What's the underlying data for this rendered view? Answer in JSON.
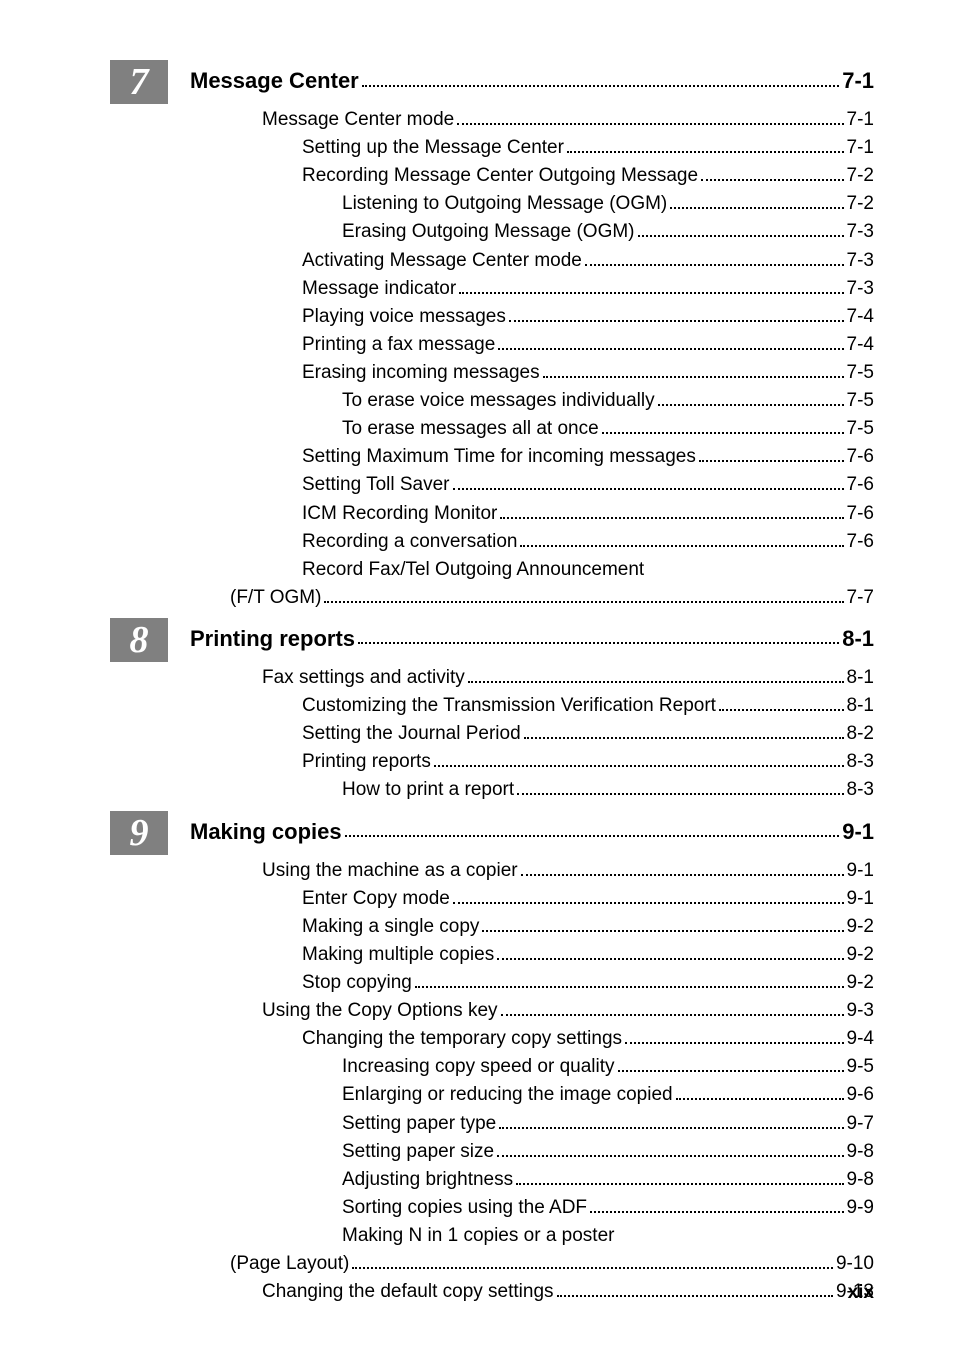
{
  "page_number": "xix",
  "colors": {
    "badge_bg": "#808080",
    "badge_fg": "#ffffff",
    "text": "#000000",
    "bg": "#ffffff"
  },
  "typography": {
    "chapter_title_fontsize": 22,
    "chapter_title_weight": "bold",
    "body_fontsize": 19,
    "badge_fontsize": 38,
    "badge_family": "Times New Roman"
  },
  "sections": [
    {
      "badge": "7",
      "title": "Message Center",
      "page": "7-1",
      "entries": [
        {
          "label": "Message Center mode",
          "page": "7-1",
          "indent": 1
        },
        {
          "label": "Setting up the Message Center",
          "page": "7-1",
          "indent": 2
        },
        {
          "label": "Recording Message Center Outgoing Message",
          "page": "7-2",
          "indent": 2
        },
        {
          "label": "Listening to Outgoing Message (OGM)",
          "page": "7-2",
          "indent": 3
        },
        {
          "label": "Erasing Outgoing Message (OGM)",
          "page": "7-3",
          "indent": 3
        },
        {
          "label": "Activating Message Center mode",
          "page": "7-3",
          "indent": 2
        },
        {
          "label": "Message indicator",
          "page": "7-3",
          "indent": 2
        },
        {
          "label": "Playing voice messages",
          "page": "7-4",
          "indent": 2
        },
        {
          "label": "Printing a fax message",
          "page": "7-4",
          "indent": 2
        },
        {
          "label": "Erasing incoming messages",
          "page": "7-5",
          "indent": 2
        },
        {
          "label": "To erase voice messages individually",
          "page": "7-5",
          "indent": 3
        },
        {
          "label": "To erase messages all at once",
          "page": "7-5",
          "indent": 3
        },
        {
          "label": "Setting Maximum Time for incoming messages",
          "page": "7-6",
          "indent": 2
        },
        {
          "label": "Setting Toll Saver",
          "page": "7-6",
          "indent": 2
        },
        {
          "label": "ICM Recording Monitor",
          "page": "7-6",
          "indent": 2
        },
        {
          "label": "Recording a conversation",
          "page": "7-6",
          "indent": 2
        },
        {
          "label": "Record Fax/Tel Outgoing Announcement",
          "page": "",
          "indent": 2,
          "nopage": true
        },
        {
          "label": "(F/T OGM)",
          "page": "7-7",
          "indent": 2,
          "continuation": true
        }
      ]
    },
    {
      "badge": "8",
      "title": "Printing reports",
      "page": "8-1",
      "entries": [
        {
          "label": "Fax settings and activity",
          "page": "8-1",
          "indent": 1
        },
        {
          "label": "Customizing the Transmission Verification Report",
          "page": "8-1",
          "indent": 2
        },
        {
          "label": "Setting the Journal Period",
          "page": "8-2",
          "indent": 2
        },
        {
          "label": "Printing reports",
          "page": "8-3",
          "indent": 2
        },
        {
          "label": "How to print a report",
          "page": "8-3",
          "indent": 3
        }
      ]
    },
    {
      "badge": "9",
      "title": "Making copies",
      "page": "9-1",
      "entries": [
        {
          "label": "Using the machine as a copier",
          "page": "9-1",
          "indent": 1
        },
        {
          "label": "Enter Copy mode",
          "page": "9-1",
          "indent": 2
        },
        {
          "label": "Making a single copy",
          "page": "9-2",
          "indent": 2
        },
        {
          "label": "Making multiple copies",
          "page": "9-2",
          "indent": 2
        },
        {
          "label": "Stop copying",
          "page": "9-2",
          "indent": 2
        },
        {
          "label": "Using the Copy Options key",
          "page": "9-3",
          "indent": 1
        },
        {
          "label": "Changing the temporary copy settings",
          "page": "9-4",
          "indent": 2
        },
        {
          "label": "Increasing copy speed or quality",
          "page": "9-5",
          "indent": 3
        },
        {
          "label": "Enlarging or reducing the image copied",
          "page": "9-6",
          "indent": 3
        },
        {
          "label": "Setting paper type",
          "page": "9-7",
          "indent": 3
        },
        {
          "label": "Setting paper size",
          "page": "9-8",
          "indent": 3
        },
        {
          "label": "Adjusting brightness",
          "page": "9-8",
          "indent": 3
        },
        {
          "label": "Sorting copies using the ADF",
          "page": "9-9",
          "indent": 3
        },
        {
          "label": "Making N in 1 copies or a poster",
          "page": "",
          "indent": 3,
          "nopage": true
        },
        {
          "label": "(Page Layout)",
          "page": "9-10",
          "indent": 3,
          "continuation": true
        },
        {
          "label": "Changing the default copy settings",
          "page": "9-13",
          "indent": 1
        }
      ]
    }
  ]
}
